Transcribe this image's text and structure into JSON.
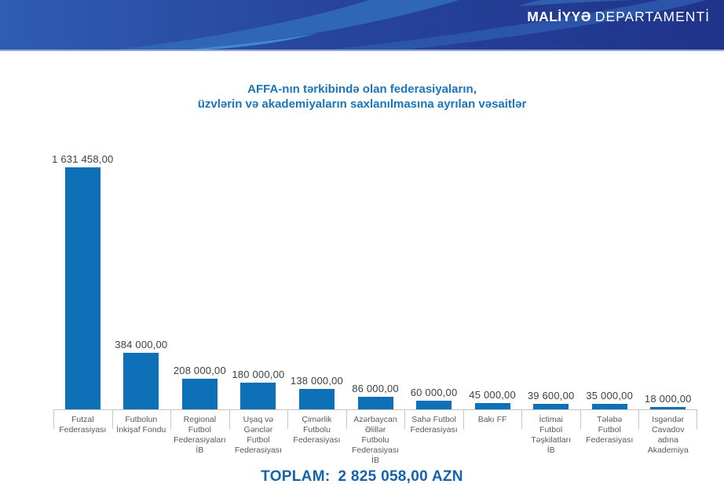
{
  "header": {
    "brand_bold": "MALİYYƏ",
    "brand_regular": "DEPARTAMENTİ"
  },
  "chart_data": {
    "type": "bar",
    "title_lines": [
      "AFFA-nın tərkibində olan federasiyaların,",
      "üzvlərin və akademiyaların saxlanılmasına ayrılan vəsaitlər"
    ],
    "categories": [
      "Futzal\nFederasiyası",
      "Futbolun\nİnkişaf Fondu",
      "Regional\nFutbol\nFederasiyaları\nİB",
      "Uşaq və\nGənclər\nFutbol\nFederasiyası",
      "Çimərlik\nFutbolu\nFederasiyası",
      "Azərbaycan\nƏlillər\nFutbolu\nFederasiyası\nİB",
      "Sahə Futbol\nFederasiyası",
      "Bakı FF",
      "İctimai\nFutbol\nTəşkilatları\nİB",
      "Tələbə\nFutbol\nFederasiyası",
      "Isgəndər\nCavadov\nadına\nAkademiya"
    ],
    "values": [
      1631458,
      384000,
      208000,
      180000,
      138000,
      86000,
      60000,
      45000,
      39600,
      35000,
      18000
    ],
    "value_labels": [
      "1 631 458,00",
      "384 000,00",
      "208 000,00",
      "180 000,00",
      "138 000,00",
      "86 000,00",
      "60 000,00",
      "45 000,00",
      "39 600,00",
      "35 000,00",
      "18 000,00"
    ],
    "ylim": [
      0,
      1700000
    ],
    "grid": false,
    "legend": false,
    "xlabel": "",
    "ylabel": ""
  },
  "total": {
    "label": "TOPLAM:",
    "value": "2 825 058,00 AZN"
  },
  "colors": {
    "bar": "#0e71b8",
    "title": "#1b74bc",
    "total": "#1562ae",
    "axis": "#c6c6c6",
    "value_label": "#3f3f3f",
    "category_label": "#595959",
    "banner_bg_left": "#2e5db2",
    "banner_bg_right": "#20338a",
    "banner_swoosh_light": "#2f66b6",
    "banner_swoosh_mid": "#2a55a9",
    "banner_swoosh_bright": "#4292d2",
    "banner_underline": "#8fa4d2"
  }
}
